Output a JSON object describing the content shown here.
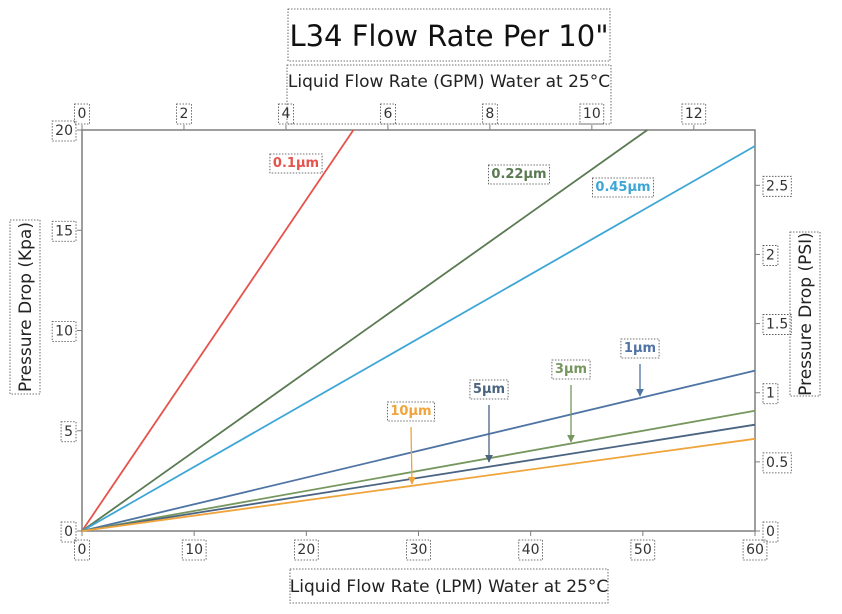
{
  "chart_data": {
    "type": "line",
    "title": "L34 Flow Rate Per 10\"",
    "x_bottom": {
      "label": "Liquid Flow Rate (LPM) Water at 25°C",
      "range": [
        0,
        60
      ],
      "ticks": [
        "0",
        "10",
        "20",
        "30",
        "40",
        "50",
        "60"
      ]
    },
    "x_top": {
      "label": "Liquid Flow Rate (GPM) Water at 25°C",
      "range": [
        0,
        13.2
      ],
      "ticks": [
        "0",
        "2",
        "4",
        "6",
        "8",
        "10",
        "12"
      ]
    },
    "y_left": {
      "label": "Pressure Drop (Kpa)",
      "range": [
        0,
        20
      ],
      "ticks": [
        "0",
        "5",
        "10",
        "15",
        "20"
      ]
    },
    "y_right": {
      "label": "Pressure Drop (PSI)",
      "range": [
        0,
        2.9
      ],
      "ticks": [
        "0",
        "0.5",
        "1",
        "1.5",
        "2",
        "2.5"
      ]
    },
    "grid": false,
    "series": [
      {
        "name": "0.1µm",
        "color": "#e5534b",
        "x": [
          0,
          24.2
        ],
        "y": [
          0,
          20
        ]
      },
      {
        "name": "0.22µm",
        "color": "#5a7a52",
        "x": [
          0,
          50.4
        ],
        "y": [
          0,
          20
        ]
      },
      {
        "name": "0.45µm",
        "color": "#3ea6d6",
        "x": [
          0,
          60
        ],
        "y": [
          0,
          19.2
        ]
      },
      {
        "name": "1µm",
        "color": "#4f74a4",
        "x": [
          0,
          60
        ],
        "y": [
          0,
          8.0
        ]
      },
      {
        "name": "3µm",
        "color": "#76975e",
        "x": [
          0,
          60
        ],
        "y": [
          0,
          6.0
        ]
      },
      {
        "name": "5µm",
        "color": "#4a6482",
        "x": [
          0,
          60
        ],
        "y": [
          0,
          5.3
        ]
      },
      {
        "name": "10µm",
        "color": "#f0a43c",
        "x": [
          0,
          60
        ],
        "y": [
          0,
          4.6
        ]
      }
    ]
  }
}
